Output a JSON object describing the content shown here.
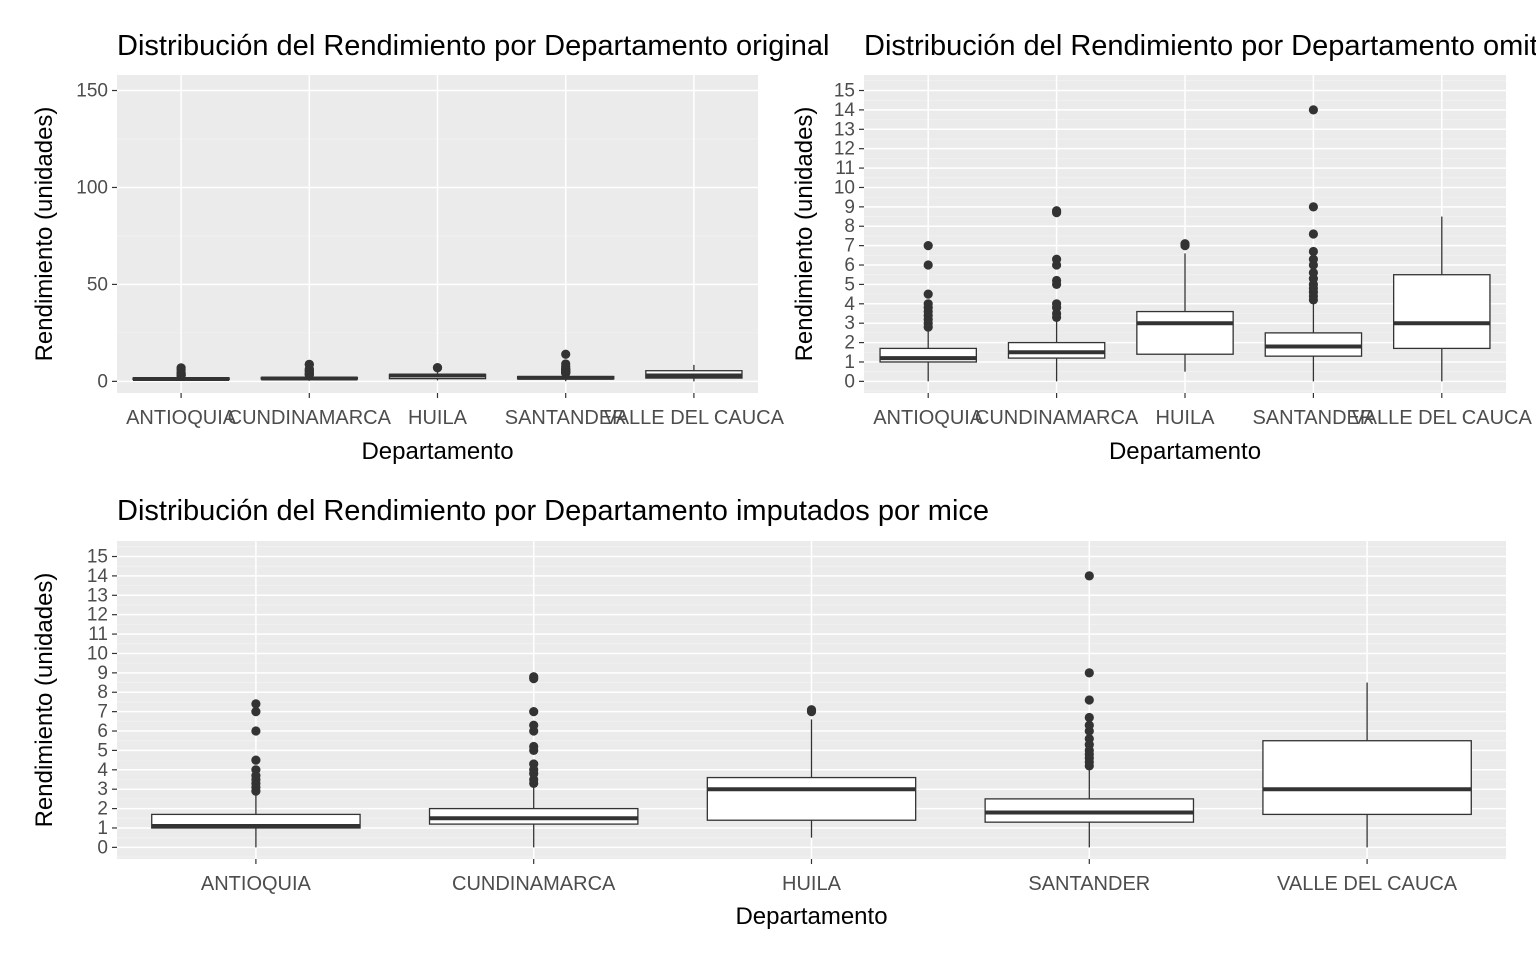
{
  "chart_data": [
    {
      "type": "boxplot",
      "title": "Distribución del Rendimiento por Departamento original",
      "xlabel": "Departamento",
      "ylabel": "Rendimiento (unidades)",
      "ylim": [
        -6,
        158
      ],
      "yticks": [
        0,
        50,
        100,
        150
      ],
      "grid": true,
      "categories": [
        "ANTIOQUIA",
        "CUNDINAMARCA",
        "HUILA",
        "SANTANDER",
        "VALLE DEL CAUCA"
      ],
      "boxes": [
        {
          "q1": 1.0,
          "median": 1.2,
          "q3": 1.7,
          "whisker_low": 0.2,
          "whisker_high": 2.7,
          "outliers": [
            2.9,
            3.1,
            3.3,
            3.5,
            3.8,
            4.0,
            4.5,
            6.0,
            7.0
          ]
        },
        {
          "q1": 1.2,
          "median": 1.5,
          "q3": 2.0,
          "whisker_low": 0.3,
          "whisker_high": 3.1,
          "outliers": [
            3.3,
            3.5,
            3.8,
            4.0,
            5.0,
            5.2,
            6.0,
            6.3,
            8.7,
            8.8
          ]
        },
        {
          "q1": 1.4,
          "median": 3.0,
          "q3": 3.6,
          "whisker_low": 0.5,
          "whisker_high": 6.6,
          "outliers": [
            7.0,
            7.1
          ]
        },
        {
          "q1": 1.3,
          "median": 1.8,
          "q3": 2.5,
          "whisker_low": 0.1,
          "whisker_high": 4.1,
          "outliers": [
            4.2,
            4.4,
            4.6,
            4.8,
            5.0,
            5.3,
            5.6,
            6.0,
            6.3,
            6.7,
            7.6,
            9.0,
            14.0
          ]
        },
        {
          "q1": 1.7,
          "median": 3.0,
          "q3": 5.5,
          "whisker_low": 0.0,
          "whisker_high": 8.5,
          "outliers": []
        }
      ]
    },
    {
      "type": "boxplot",
      "title": "Distribución del Rendimiento por Departamento omitiendo NA",
      "xlabel": "Departamento",
      "ylabel": "Rendimiento (unidades)",
      "ylim": [
        -0.6,
        15.8
      ],
      "yticks": [
        0,
        1,
        2,
        3,
        4,
        5,
        6,
        7,
        8,
        9,
        10,
        11,
        12,
        13,
        14,
        15
      ],
      "grid": true,
      "categories": [
        "ANTIOQUIA",
        "CUNDINAMARCA",
        "HUILA",
        "SANTANDER",
        "VALLE DEL CAUCA"
      ],
      "boxes": [
        {
          "q1": 1.0,
          "median": 1.2,
          "q3": 1.7,
          "whisker_low": 0.0,
          "whisker_high": 2.7,
          "outliers": [
            2.8,
            3.0,
            3.2,
            3.4,
            3.6,
            3.8,
            4.0,
            4.5,
            6.0,
            7.0
          ]
        },
        {
          "q1": 1.2,
          "median": 1.5,
          "q3": 2.0,
          "whisker_low": 0.0,
          "whisker_high": 3.1,
          "outliers": [
            3.3,
            3.5,
            3.8,
            4.0,
            5.0,
            5.2,
            6.0,
            6.3,
            8.7,
            8.8
          ]
        },
        {
          "q1": 1.4,
          "median": 3.0,
          "q3": 3.6,
          "whisker_low": 0.5,
          "whisker_high": 6.6,
          "outliers": [
            7.0,
            7.1
          ]
        },
        {
          "q1": 1.3,
          "median": 1.8,
          "q3": 2.5,
          "whisker_low": 0.0,
          "whisker_high": 4.1,
          "outliers": [
            4.2,
            4.4,
            4.6,
            4.8,
            5.0,
            5.3,
            5.6,
            6.0,
            6.3,
            6.7,
            7.6,
            9.0,
            14.0
          ]
        },
        {
          "q1": 1.7,
          "median": 3.0,
          "q3": 5.5,
          "whisker_low": 0.0,
          "whisker_high": 8.5,
          "outliers": []
        }
      ]
    },
    {
      "type": "boxplot",
      "title": "Distribución del Rendimiento por Departamento imputados por mice",
      "xlabel": "Departamento",
      "ylabel": "Rendimiento (unidades)",
      "ylim": [
        -0.6,
        15.8
      ],
      "yticks": [
        0,
        1,
        2,
        3,
        4,
        5,
        6,
        7,
        8,
        9,
        10,
        11,
        12,
        13,
        14,
        15
      ],
      "grid": true,
      "categories": [
        "ANTIOQUIA",
        "CUNDINAMARCA",
        "HUILA",
        "SANTANDER",
        "VALLE DEL CAUCA"
      ],
      "boxes": [
        {
          "q1": 1.0,
          "median": 1.1,
          "q3": 1.7,
          "whisker_low": 0.0,
          "whisker_high": 2.7,
          "outliers": [
            2.9,
            3.1,
            3.3,
            3.5,
            3.7,
            4.0,
            4.5,
            6.0,
            7.0,
            7.4
          ]
        },
        {
          "q1": 1.2,
          "median": 1.5,
          "q3": 2.0,
          "whisker_low": 0.0,
          "whisker_high": 3.1,
          "outliers": [
            3.3,
            3.5,
            3.8,
            4.0,
            4.3,
            5.0,
            5.2,
            6.0,
            6.3,
            7.0,
            8.7,
            8.8
          ]
        },
        {
          "q1": 1.4,
          "median": 3.0,
          "q3": 3.6,
          "whisker_low": 0.5,
          "whisker_high": 6.6,
          "outliers": [
            7.0,
            7.1
          ]
        },
        {
          "q1": 1.3,
          "median": 1.8,
          "q3": 2.5,
          "whisker_low": 0.0,
          "whisker_high": 4.1,
          "outliers": [
            4.2,
            4.4,
            4.6,
            4.8,
            5.0,
            5.3,
            5.6,
            6.0,
            6.3,
            6.7,
            7.6,
            9.0,
            14.0
          ]
        },
        {
          "q1": 1.7,
          "median": 3.0,
          "q3": 5.5,
          "whisker_low": 0.0,
          "whisker_high": 8.5,
          "outliers": []
        }
      ]
    }
  ],
  "colors": {
    "panel_background": "#ebebeb",
    "grid_major": "#ffffff",
    "grid_minor": "#f2f2f2",
    "box_fill": "#ffffff",
    "box_stroke": "#333333",
    "outlier": "#333333",
    "tick_text": "#4d4d4d",
    "text": "#000000"
  }
}
